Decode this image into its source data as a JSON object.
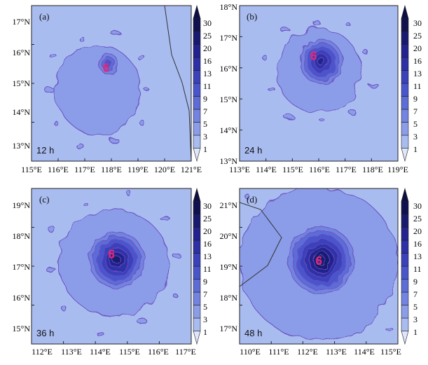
{
  "chart_data": [
    {
      "type": "heatmap",
      "panel_label": "(a)",
      "time_label": "12 h",
      "x_ticks": [
        "115°E",
        "116°E",
        "117°E",
        "118°E",
        "119°E",
        "120°E",
        "121°E"
      ],
      "y_ticks": [
        "13°N",
        "14°N",
        "15°N",
        "16°N",
        "17°N"
      ],
      "xlim": [
        115,
        121
      ],
      "ylim": [
        12.6,
        17.4
      ],
      "colorbar_levels": [
        "1",
        "3",
        "5",
        "7",
        "9",
        "11",
        "13",
        "16",
        "20",
        "25",
        "30"
      ],
      "storm_center": {
        "lon": 117.8,
        "lat": 15.5
      },
      "cores": [
        {
          "lon": 117.9,
          "lat": 15.6,
          "radius_deg": 0.35,
          "max_level": 3
        },
        {
          "lon": 117.5,
          "lat": 14.8,
          "radius_deg": 1.6,
          "max_level": 1
        }
      ]
    },
    {
      "type": "heatmap",
      "panel_label": "(b)",
      "time_label": "24 h",
      "x_ticks": [
        "113°E",
        "114°E",
        "115°E",
        "116°E",
        "117°E",
        "118°E",
        "119°E"
      ],
      "y_ticks": [
        "13°N",
        "14°N",
        "15°N",
        "16°N",
        "17°N",
        "18°N"
      ],
      "xlim": [
        113,
        119
      ],
      "ylim": [
        13,
        18
      ],
      "colorbar_levels": [
        "1",
        "3",
        "5",
        "7",
        "9",
        "11",
        "13",
        "16",
        "20",
        "25",
        "30"
      ],
      "storm_center": {
        "lon": 115.8,
        "lat": 16.4
      },
      "cores": [
        {
          "lon": 116.1,
          "lat": 16.2,
          "radius_deg": 0.8,
          "max_level": 6
        },
        {
          "lon": 116.0,
          "lat": 15.9,
          "radius_deg": 1.6,
          "max_level": 1
        }
      ]
    },
    {
      "type": "heatmap",
      "panel_label": "(c)",
      "time_label": "36 h",
      "x_ticks": [
        "112°E",
        "113°E",
        "114°E",
        "115°E",
        "116°E",
        "117°E"
      ],
      "y_ticks": [
        "15°N",
        "16°N",
        "17°N",
        "18°N",
        "19°N"
      ],
      "xlim": [
        111.6,
        117.4
      ],
      "ylim": [
        14.6,
        19.6
      ],
      "colorbar_levels": [
        "1",
        "3",
        "5",
        "7",
        "9",
        "11",
        "13",
        "16",
        "20",
        "25",
        "30"
      ],
      "storm_center": {
        "lon": 114.5,
        "lat": 17.5
      },
      "cores": [
        {
          "lon": 114.7,
          "lat": 17.3,
          "radius_deg": 1.0,
          "max_level": 7
        },
        {
          "lon": 114.6,
          "lat": 17.2,
          "radius_deg": 2.0,
          "max_level": 1
        }
      ]
    },
    {
      "type": "heatmap",
      "panel_label": "(d)",
      "time_label": "48 h",
      "x_ticks": [
        "110°E",
        "111°E",
        "112°E",
        "113°E",
        "114°E",
        "115°E"
      ],
      "y_ticks": [
        "17°N",
        "18°N",
        "19°N",
        "20°N",
        "21°N"
      ],
      "xlim": [
        109.6,
        115.6
      ],
      "ylim": [
        16.4,
        21.6
      ],
      "colorbar_levels": [
        "1",
        "3",
        "5",
        "7",
        "9",
        "11",
        "13",
        "16",
        "20",
        "25",
        "30"
      ],
      "storm_center": {
        "lon": 112.6,
        "lat": 19.2
      },
      "cores": [
        {
          "lon": 112.7,
          "lat": 19.2,
          "radius_deg": 1.25,
          "max_level": 8
        },
        {
          "lon": 112.6,
          "lat": 19.1,
          "radius_deg": 3.0,
          "max_level": 1
        }
      ]
    }
  ],
  "colors": {
    "background_field": "#a9bcf0",
    "level_1": "#8b9de8",
    "level_2": "#7383e0",
    "level_3": "#5d6cd6",
    "level_4": "#4a55cc",
    "level_5": "#3a41bb",
    "level_6": "#2d30a6",
    "level_7": "#22238e",
    "level_8": "#181a70",
    "contour_line": "#6a4fc0",
    "storm_symbol": "#e02a7a",
    "coastline": "#333333"
  }
}
